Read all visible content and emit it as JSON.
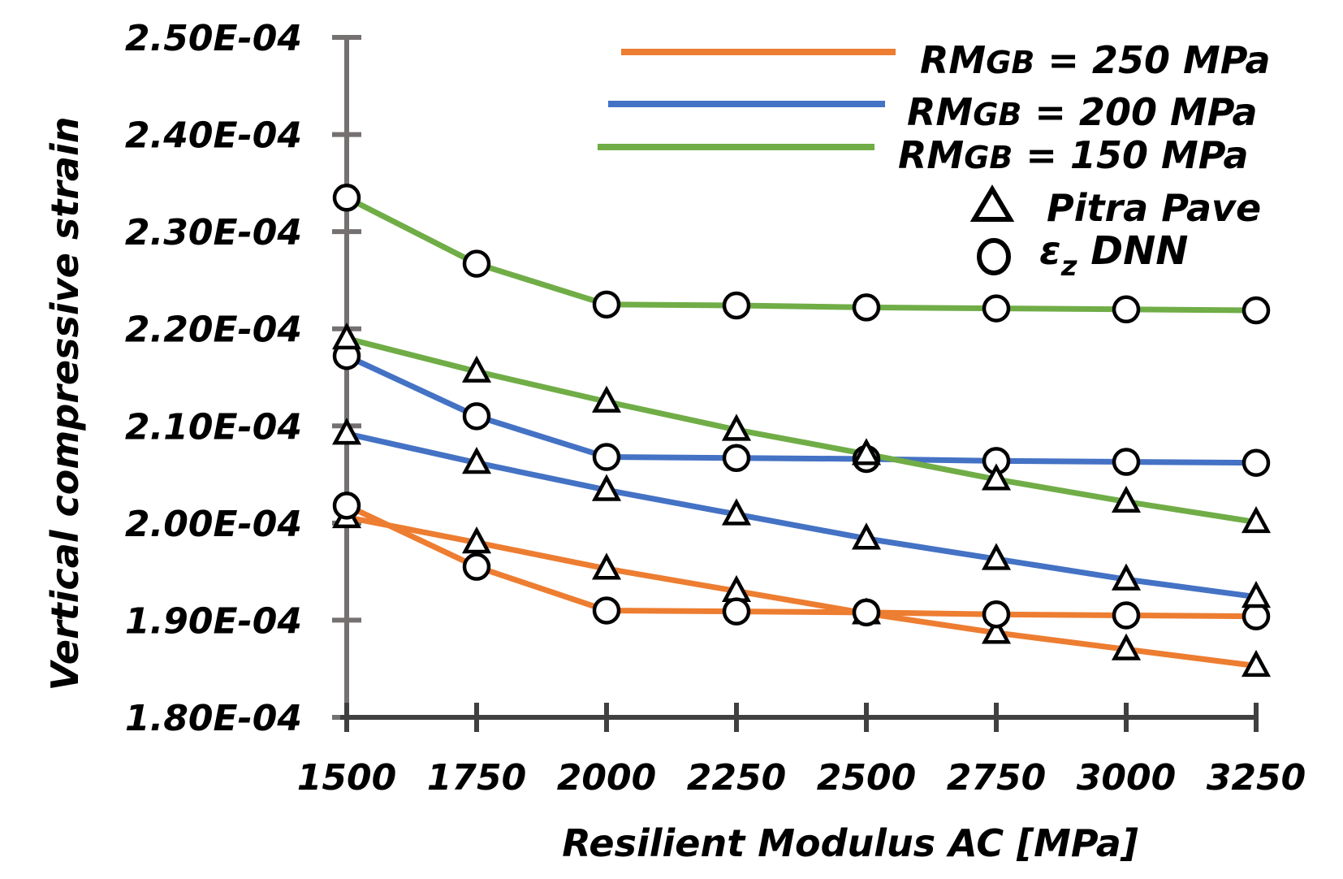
{
  "chart_data": {
    "type": "line",
    "title": "",
    "xlabel": "Resilient Modulus AC [MPa]",
    "ylabel": "Vertical compressive strain",
    "x": [
      1500,
      1750,
      2000,
      2250,
      2500,
      2750,
      3000,
      3250
    ],
    "x_tick_labels": [
      "1500",
      "1750",
      "2000",
      "2250",
      "2500",
      "2750",
      "3000",
      "3250"
    ],
    "ylim": [
      0.00018,
      0.00025
    ],
    "y_ticks": [
      0.00018,
      0.00019,
      0.0002,
      0.00021,
      0.00022,
      0.00023,
      0.00024,
      0.00025
    ],
    "y_tick_labels": [
      "1.80E-04",
      "1.90E-04",
      "2.00E-04",
      "2.10E-04",
      "2.20E-04",
      "2.30E-04",
      "2.40E-04",
      "2.50E-04"
    ],
    "grid": false,
    "legend_position": "top-right",
    "series": [
      {
        "name": "RMGB = 250 MPa (Pitra Pave)",
        "group": "RMGB = 250 MPa",
        "method": "Pitra Pave",
        "marker": "triangle",
        "color": "#ED7D31",
        "values": [
          0.0002006,
          0.000198,
          0.0001953,
          0.000193,
          0.0001907,
          0.0001887,
          0.000187,
          0.0001853
        ]
      },
      {
        "name": "RMGB = 250 MPa (εz DNN)",
        "group": "RMGB = 250 MPa",
        "method": "εz DNN",
        "marker": "circle",
        "color": "#ED7D31",
        "values": [
          0.0002018,
          0.0001955,
          0.000191,
          0.0001909,
          0.0001908,
          0.0001906,
          0.0001905,
          0.0001904
        ]
      },
      {
        "name": "RMGB = 200 MPa (Pitra Pave)",
        "group": "RMGB = 200 MPa",
        "method": "Pitra Pave",
        "marker": "triangle",
        "color": "#4472C4",
        "values": [
          0.0002092,
          0.0002062,
          0.0002034,
          0.0002009,
          0.0001984,
          0.0001963,
          0.0001942,
          0.0001924
        ]
      },
      {
        "name": "RMGB = 200 MPa (εz DNN)",
        "group": "RMGB = 200 MPa",
        "method": "εz DNN",
        "marker": "circle",
        "color": "#4472C4",
        "values": [
          0.0002172,
          0.000211,
          0.0002068,
          0.0002067,
          0.0002066,
          0.0002064,
          0.0002063,
          0.0002062
        ]
      },
      {
        "name": "RMGB = 150 MPa (Pitra Pave)",
        "group": "RMGB = 150 MPa",
        "method": "Pitra Pave",
        "marker": "triangle",
        "color": "#70AD47",
        "values": [
          0.000219,
          0.0002156,
          0.0002125,
          0.0002096,
          0.0002071,
          0.0002045,
          0.0002022,
          0.0002001
        ]
      },
      {
        "name": "RMGB = 150 MPa (εz DNN)",
        "group": "RMGB = 150 MPa",
        "method": "εz DNN",
        "marker": "circle",
        "color": "#70AD47",
        "values": [
          0.0002335,
          0.0002267,
          0.0002225,
          0.0002224,
          0.0002222,
          0.0002221,
          0.000222,
          0.0002219
        ]
      }
    ],
    "legend": {
      "lines": [
        {
          "prefix": "RM",
          "sub": "GB",
          "suffix": " = 250 MPa",
          "color": "#ED7D31"
        },
        {
          "prefix": "RM",
          "sub": "GB",
          "suffix": " = 200 MPa",
          "color": "#4472C4"
        },
        {
          "prefix": "RM",
          "sub": "GB",
          "suffix": " = 150 MPa",
          "color": "#70AD47"
        }
      ],
      "markers": [
        {
          "marker": "triangle",
          "label": "Pitra Pave"
        },
        {
          "marker": "circle",
          "symbol": "ε",
          "sub": "z",
          "label": " DNN"
        }
      ]
    },
    "colors": {
      "axis_y": "#767171",
      "axis_x": "#404040",
      "marker_edge": "#000000",
      "marker_fill": "#ffffff"
    }
  }
}
